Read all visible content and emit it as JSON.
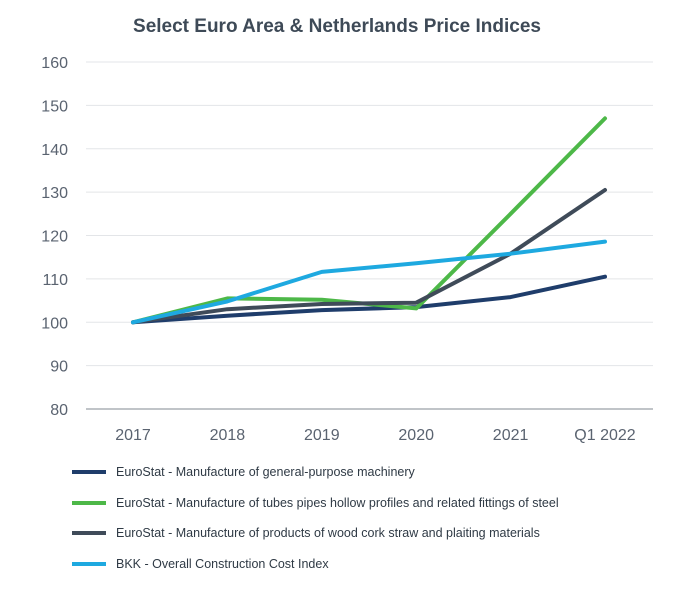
{
  "chart_data": {
    "type": "line",
    "title": "Select Euro Area & Netherlands Price Indices",
    "xlabel": "",
    "ylabel": "",
    "categories": [
      "2017",
      "2018",
      "2019",
      "2020",
      "2021",
      "Q1 2022"
    ],
    "ylim": [
      80,
      160
    ],
    "yticks": [
      "160",
      "150",
      "140",
      "130",
      "120",
      "110",
      "100",
      "90",
      "80"
    ],
    "grid": true,
    "legend_position": "bottom",
    "series": [
      {
        "name": "EuroStat - Manufacture of general-purpose machinery",
        "color": "#1f3d6b",
        "values": [
          100,
          101.5,
          102.8,
          103.5,
          105.8,
          110.5
        ]
      },
      {
        "name": "EuroStat - Manufacture of tubes  pipes  hollow profiles and related fittings  of steel",
        "color": "#4db848",
        "values": [
          100,
          105.5,
          105.2,
          103.2,
          125.0,
          147.0
        ]
      },
      {
        "name": "EuroStat - Manufacture of products of wood  cork  straw and plaiting materials",
        "color": "#3f4b59",
        "values": [
          100,
          103.0,
          104.2,
          104.5,
          115.8,
          130.5
        ]
      },
      {
        "name": "BKK - Overall Construction Cost Index",
        "color": "#1ea9e0",
        "values": [
          100,
          104.8,
          111.6,
          113.6,
          115.8,
          118.6
        ]
      }
    ]
  }
}
